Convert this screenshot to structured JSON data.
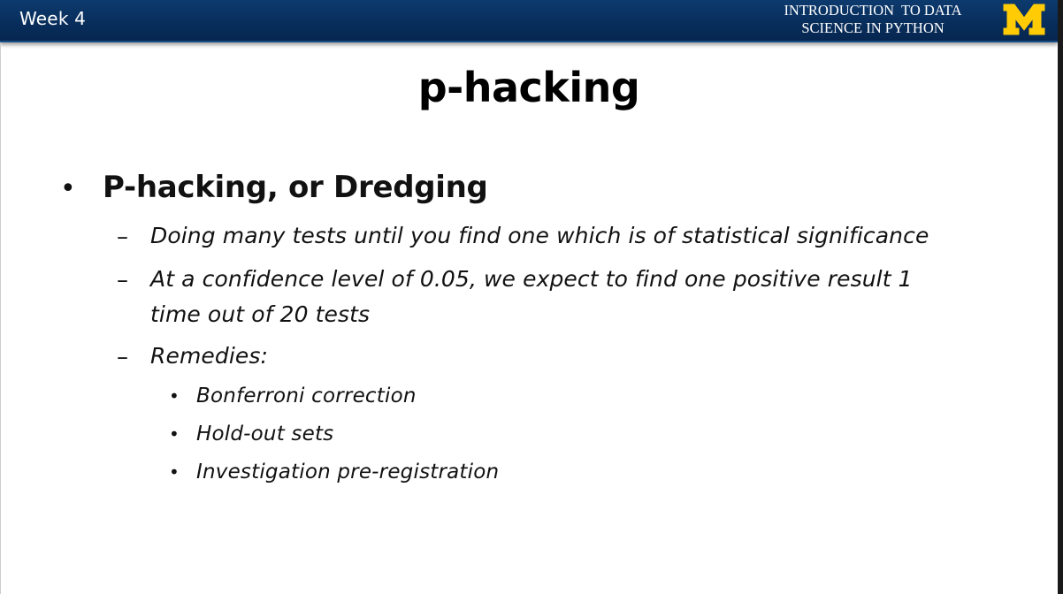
{
  "header": {
    "week_label": "Week 4",
    "course_title_line1": "INTRODUCTION  TO DATA",
    "course_title_line2": "SCIENCE IN PYTHON",
    "logo_text": "M",
    "background_color": "#0a3161",
    "logo_color": "#ffcb05"
  },
  "slide": {
    "title": "p-hacking",
    "bullet": {
      "symbol": "•",
      "label": "P-hacking, or Dredging",
      "sub_symbol": "–",
      "sub_items": [
        {
          "text": "Doing many tests until you find one which is of statistical significance"
        },
        {
          "line1": "At a confidence level of 0.05, we expect to find one positive result 1",
          "line2": "time out of 20 tests"
        },
        {
          "text": "Remedies:"
        }
      ],
      "remedies_symbol": "•",
      "remedies": [
        "Bonferroni correction",
        "Hold-out sets",
        "Investigation pre-registration"
      ]
    }
  }
}
